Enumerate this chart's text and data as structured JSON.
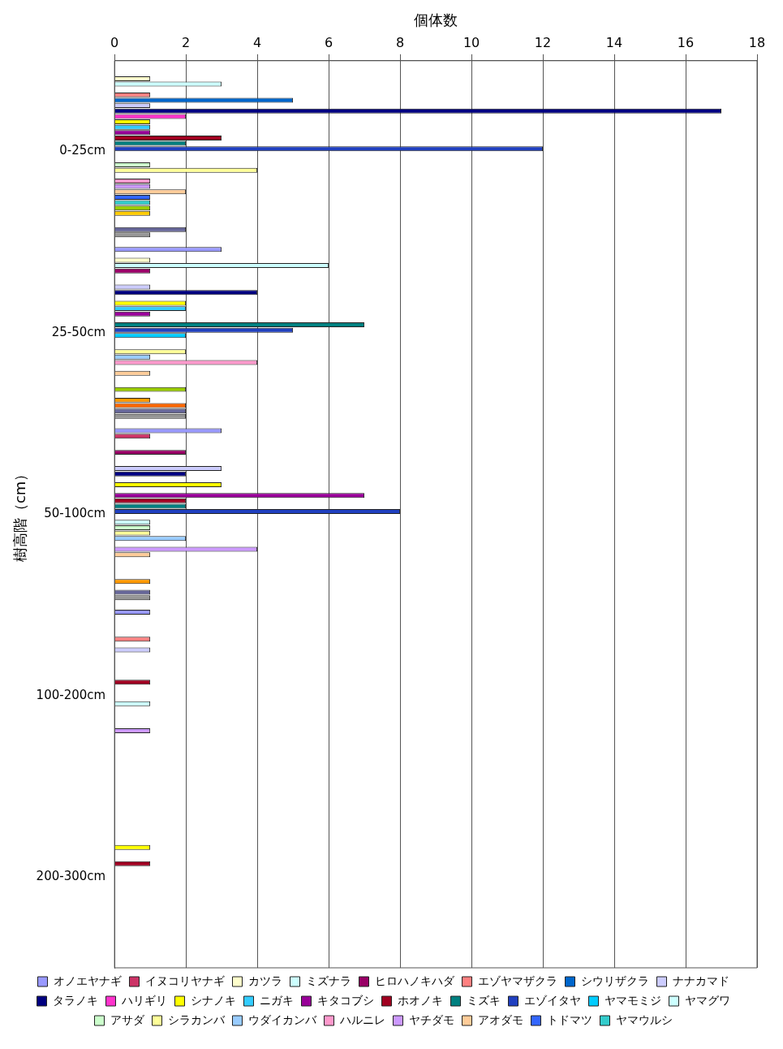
{
  "chart_data": {
    "type": "bar",
    "orientation": "horizontal",
    "xlabel": "個体数",
    "ylabel": "樹高階（cm）",
    "categories": [
      "0-25cm",
      "25-50cm",
      "50-100cm",
      "100-200cm",
      "200-300cm"
    ],
    "xlim": [
      0,
      18
    ],
    "xticks": [
      0,
      2,
      4,
      6,
      8,
      10,
      12,
      14,
      16,
      18
    ],
    "grid": "x",
    "legend": "bottom",
    "series": [
      {
        "name": "オノエヤナギ",
        "color": "#9999ff",
        "values": [
          0,
          3,
          3,
          1,
          0
        ]
      },
      {
        "name": "イヌコリヤナギ",
        "color": "#cc3366",
        "values": [
          0,
          0,
          1,
          0,
          0
        ]
      },
      {
        "name": "カツラ",
        "color": "#ffffcc",
        "values": [
          1,
          1,
          0,
          0,
          0
        ]
      },
      {
        "name": "ミズナラ",
        "color": "#ccffff",
        "values": [
          3,
          6,
          0,
          0,
          0
        ]
      },
      {
        "name": "ヒロハノキハダ",
        "color": "#990066",
        "values": [
          0,
          1,
          2,
          0,
          0
        ]
      },
      {
        "name": "エゾヤマザクラ",
        "color": "#ff8080",
        "values": [
          1,
          0,
          0,
          1,
          0
        ]
      },
      {
        "name": "シウリザクラ",
        "color": "#0066cc",
        "values": [
          5,
          0,
          0,
          0,
          0
        ]
      },
      {
        "name": "ナナカマド",
        "color": "#ccccff",
        "values": [
          1,
          1,
          3,
          1,
          0
        ]
      },
      {
        "name": "タラノキ",
        "color": "#000080",
        "values": [
          17,
          4,
          2,
          0,
          0
        ]
      },
      {
        "name": "ハリギリ",
        "color": "#ff33cc",
        "values": [
          2,
          0,
          0,
          0,
          0
        ]
      },
      {
        "name": "シナノキ",
        "color": "#ffff00",
        "values": [
          1,
          2,
          3,
          0,
          1
        ]
      },
      {
        "name": "ニガキ",
        "color": "#33ccff",
        "values": [
          1,
          2,
          0,
          0,
          0
        ]
      },
      {
        "name": "キタコブシ",
        "color": "#990099",
        "values": [
          1,
          1,
          7,
          0,
          0
        ]
      },
      {
        "name": "ホオノキ",
        "color": "#a00020",
        "values": [
          3,
          0,
          2,
          1,
          1
        ]
      },
      {
        "name": "ミズキ",
        "color": "#008080",
        "values": [
          2,
          7,
          2,
          0,
          0
        ]
      },
      {
        "name": "エゾイタヤ",
        "color": "#2040c0",
        "values": [
          12,
          5,
          8,
          0,
          0
        ]
      },
      {
        "name": "ヤマモミジ",
        "color": "#00ccff",
        "values": [
          0,
          2,
          0,
          0,
          0
        ]
      },
      {
        "name": "ヤマグワ",
        "color": "#ccffff",
        "values": [
          0,
          0,
          1,
          1,
          0
        ]
      },
      {
        "name": "アサダ",
        "color": "#ccffcc",
        "values": [
          1,
          0,
          1,
          0,
          0
        ]
      },
      {
        "name": "シラカンバ",
        "color": "#ffff99",
        "values": [
          4,
          2,
          1,
          0,
          0
        ]
      },
      {
        "name": "ウダイカンバ",
        "color": "#99ccff",
        "values": [
          0,
          1,
          2,
          0,
          0
        ]
      },
      {
        "name": "ハルニレ",
        "color": "#ff99cc",
        "values": [
          1,
          4,
          0,
          0,
          0
        ]
      },
      {
        "name": "ヤチダモ",
        "color": "#cc99ff",
        "values": [
          1,
          0,
          4,
          1,
          0
        ]
      },
      {
        "name": "アオダモ",
        "color": "#ffcc99",
        "values": [
          2,
          1,
          1,
          0,
          0
        ]
      },
      {
        "name": "トドマツ",
        "color": "#3366ff",
        "values": [
          1,
          0,
          0,
          0,
          0
        ]
      },
      {
        "name": "ヤマウルシ",
        "color": "#33cccc",
        "values": [
          1,
          0,
          0,
          0,
          0
        ]
      },
      {
        "color": "#99cc00",
        "values": [
          1,
          2,
          0,
          0,
          0
        ]
      },
      {
        "color": "#ffcc00",
        "values": [
          1,
          0,
          0,
          0,
          0
        ]
      },
      {
        "color": "#ff9900",
        "values": [
          0,
          1,
          1,
          0,
          0
        ]
      },
      {
        "color": "#ff6600",
        "values": [
          0,
          2,
          0,
          0,
          0
        ]
      },
      {
        "color": "#666699",
        "values": [
          2,
          2,
          1,
          0,
          0
        ]
      },
      {
        "color": "#969696",
        "values": [
          1,
          2,
          1,
          0,
          0
        ]
      }
    ]
  }
}
